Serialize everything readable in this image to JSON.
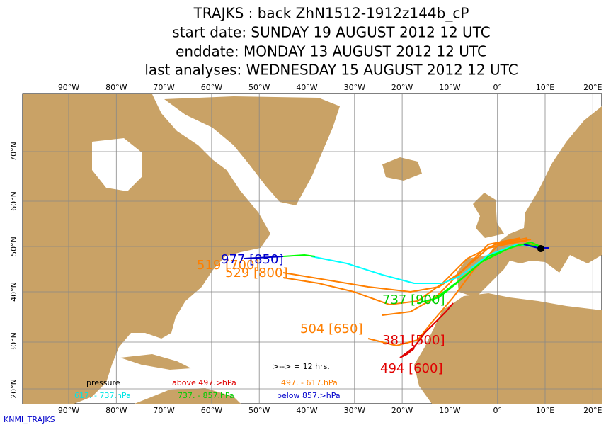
{
  "header": {
    "title": "TRAJKS : back ZhN1512-1912z144b_cP",
    "start_date": "start date:  SUNDAY    19 AUGUST    2012 12 UTC",
    "end_date": "enddate:  MONDAY    13 AUGUST    2012 12 UTC",
    "last_analyses": "last analyses:  WEDNESDAY 15 AUGUST    2012 12 UTC"
  },
  "map": {
    "lon_labels": [
      "90°W",
      "80°W",
      "70°W",
      "60°W",
      "50°W",
      "40°W",
      "30°W",
      "20°W",
      "10°W",
      "0°",
      "10°E",
      "20°E"
    ],
    "lat_labels": [
      "70°N",
      "60°N",
      "50°N",
      "40°N",
      "30°N",
      "20°N"
    ]
  },
  "trajectories": [
    "977 [850]",
    "519 [700]",
    "529 [800]",
    "737 [900]",
    "504 [650]",
    "381 [500]",
    "494 [600]"
  ],
  "legend": {
    "interval": ">--> = 12 hrs.",
    "title": "pressure",
    "entries": [
      "above   497.>hPa",
      "497. -   617.hPa",
      "617. -   737.hPa",
      "737. -   857.hPa",
      "below   857.>hPa"
    ]
  },
  "footer": "KNMI_TRAJKS"
}
